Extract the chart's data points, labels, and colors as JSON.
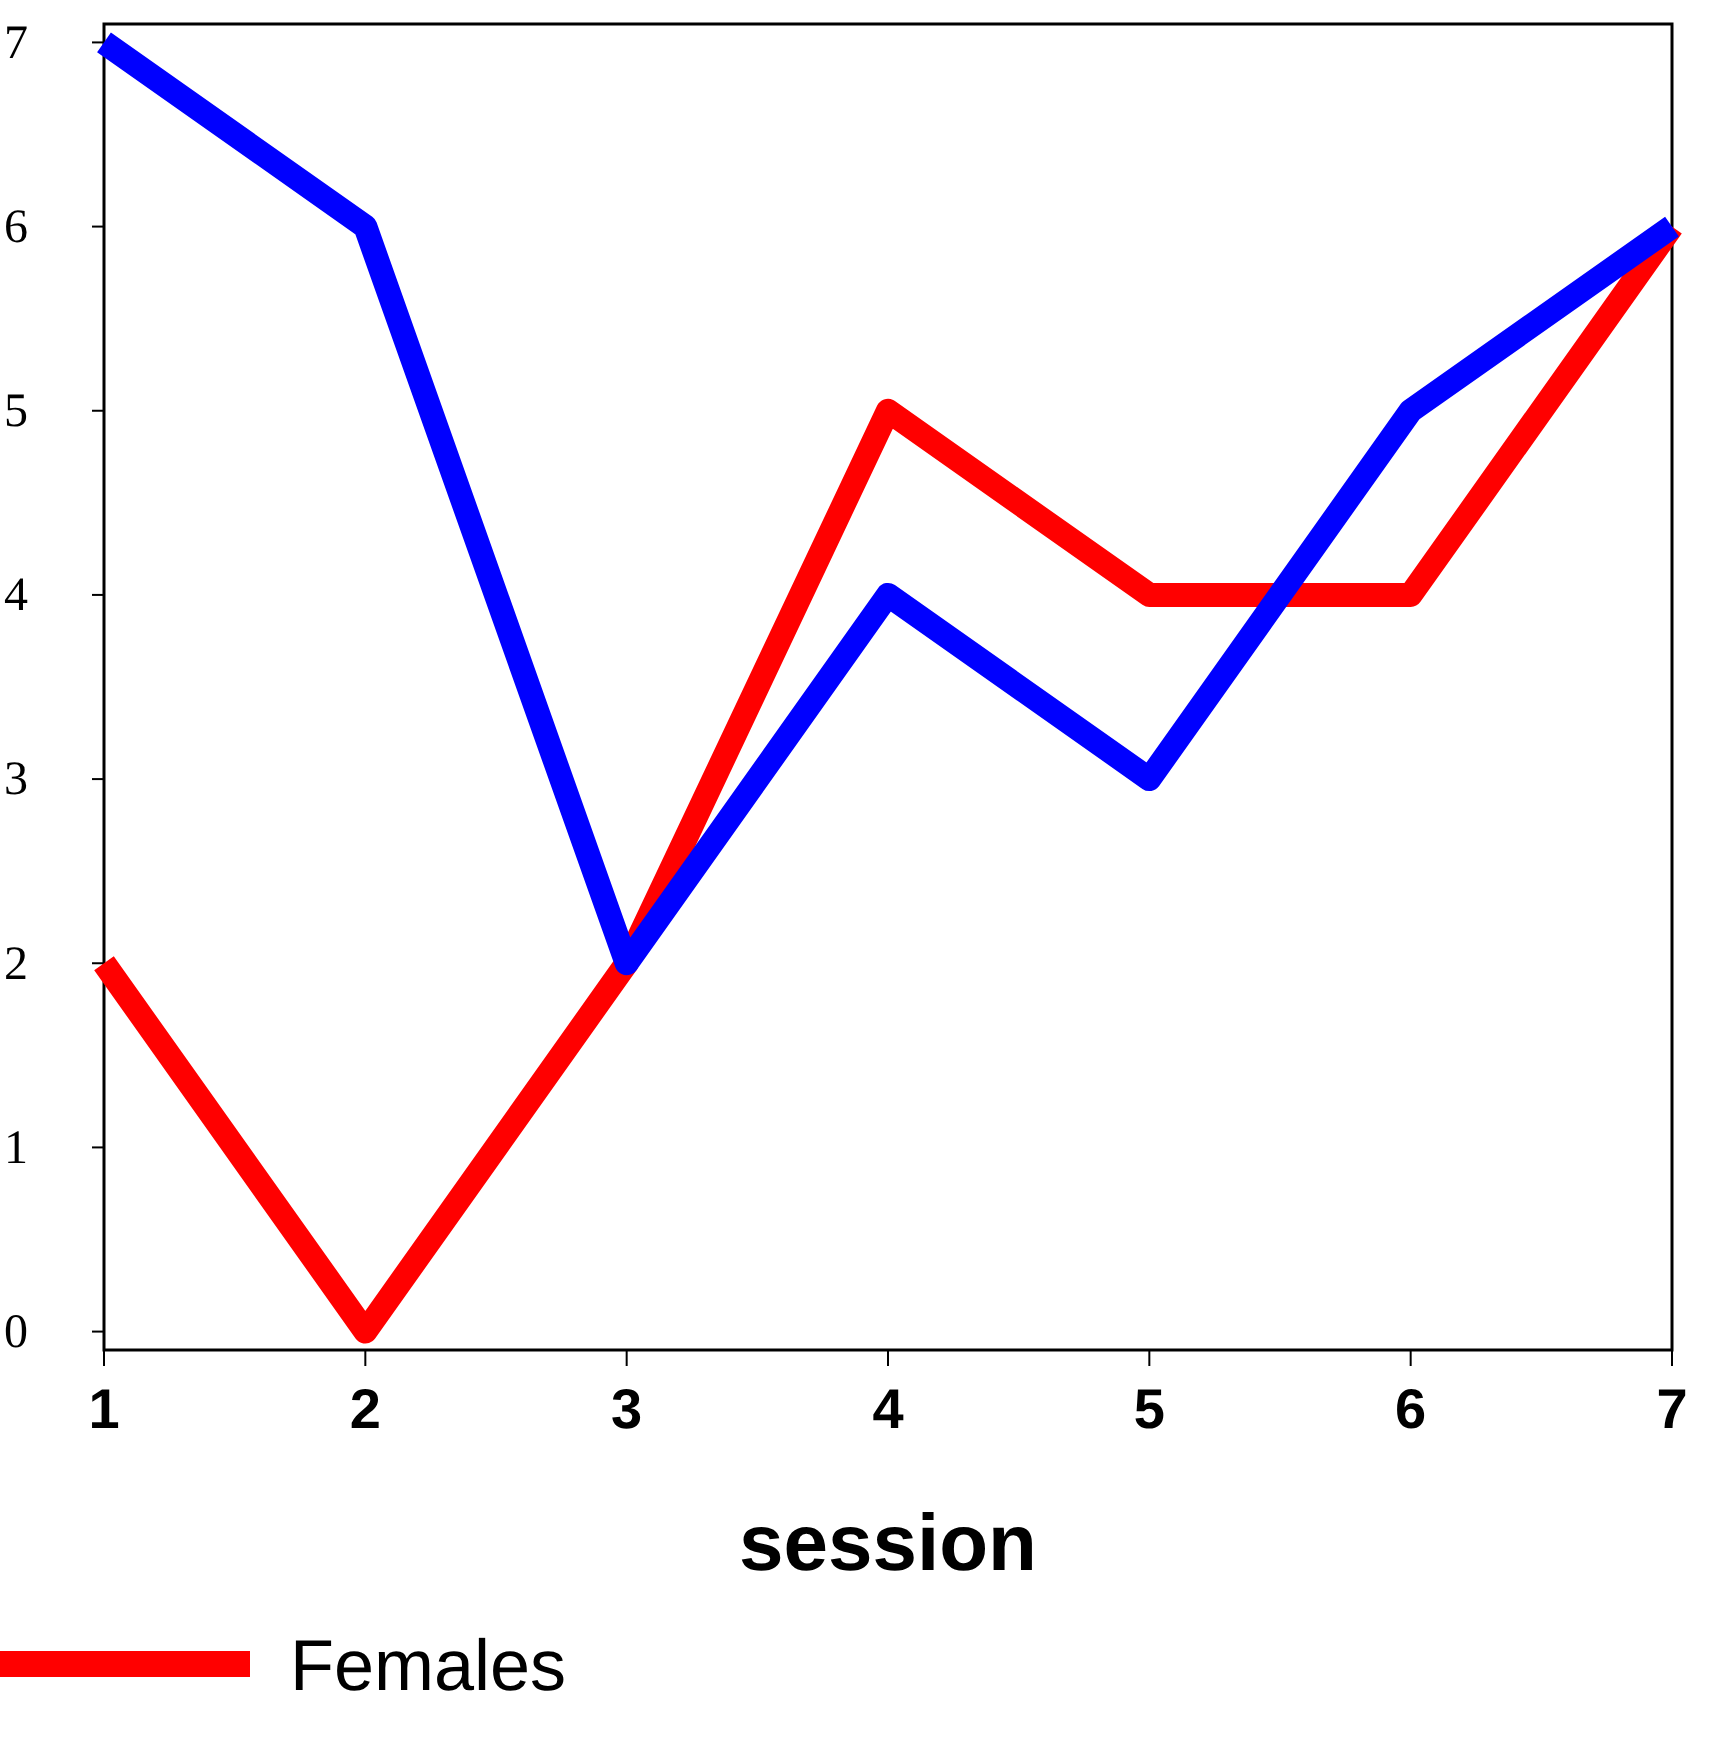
{
  "chart_data": {
    "type": "line",
    "xlabel": "session",
    "x": [
      1,
      2,
      3,
      4,
      5,
      6,
      7
    ],
    "series": [
      {
        "name": "Females",
        "color": "#ff0000",
        "values": [
          2,
          0,
          2,
          5,
          4,
          4,
          6
        ]
      },
      {
        "color": "#0000ff",
        "values": [
          7,
          6,
          2,
          4,
          3,
          5,
          6
        ]
      }
    ],
    "xlim": [
      1,
      7
    ],
    "xticks": [
      1,
      2,
      3,
      4,
      5,
      6,
      7
    ],
    "ylim": [
      -0.1,
      7.1
    ],
    "yticks": [
      0,
      1,
      2,
      3,
      4,
      5,
      6,
      7
    ],
    "grid": false,
    "legend": "bottom left",
    "marker": "none",
    "line_style": "solid"
  }
}
